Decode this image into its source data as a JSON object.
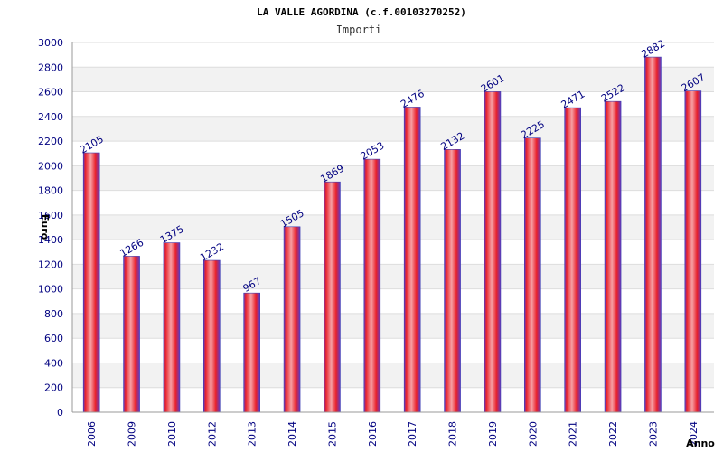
{
  "chart_data": {
    "type": "bar",
    "title": "LA VALLE AGORDINA (c.f.00103270252)",
    "subtitle": "Importi",
    "xlabel": "Anno",
    "ylabel": "Euro",
    "categories": [
      "2006",
      "2009",
      "2010",
      "2012",
      "2013",
      "2014",
      "2015",
      "2016",
      "2017",
      "2018",
      "2019",
      "2020",
      "2021",
      "2022",
      "2023",
      "2024"
    ],
    "values": [
      2105,
      1266,
      1375,
      1232,
      967,
      1505,
      1869,
      2053,
      2476,
      2132,
      2601,
      2225,
      2471,
      2522,
      2882,
      2607
    ],
    "ylim": [
      0,
      3000
    ],
    "yticks": [
      "0",
      "200",
      "400",
      "600",
      "800",
      "1000",
      "1200",
      "1400",
      "1600",
      "1800",
      "2000",
      "2200",
      "2400",
      "2600",
      "2800",
      "3000"
    ],
    "grid": true,
    "colors": {
      "bar": "#e8202a",
      "bar_highlight": "#f7a0a4",
      "bar_edge": "#3b3bb3",
      "label": "#000080"
    }
  }
}
